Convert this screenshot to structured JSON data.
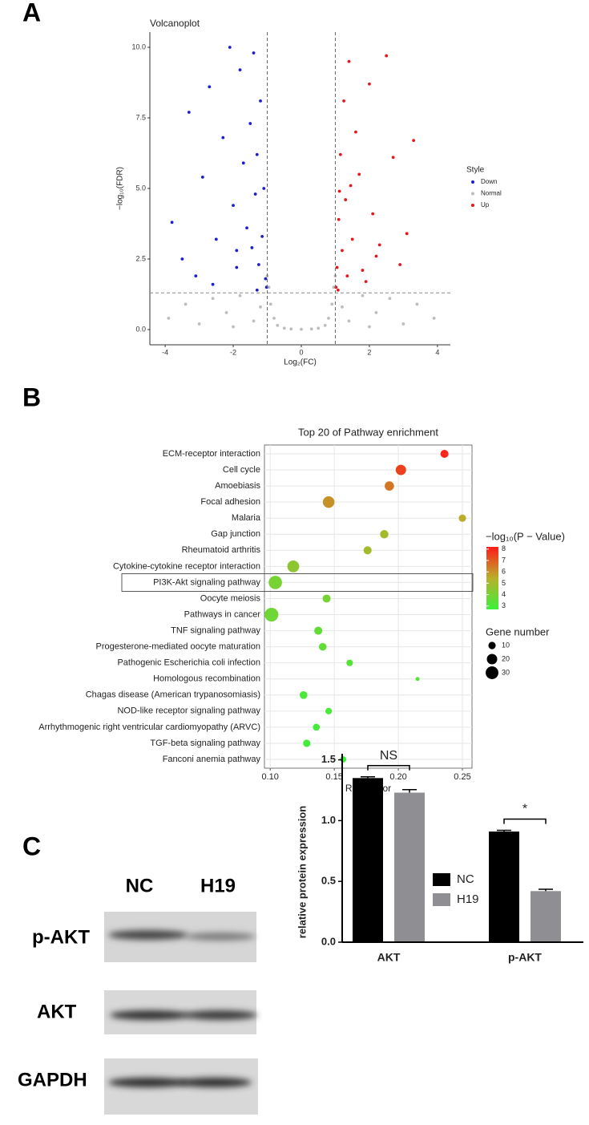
{
  "panels": [
    "A",
    "B",
    "C"
  ],
  "blot": {
    "lanes": [
      "NC",
      "H19"
    ],
    "rows": [
      "p-AKT",
      "AKT",
      "GAPDH"
    ]
  },
  "chart_data": [
    {
      "type": "scatter",
      "title": "Volcanoplot",
      "xlabel": "Log₂(FC)",
      "ylabel": "−log₁₀(FDR)",
      "legend_title": "Style",
      "xlim": [
        -4.45,
        4.38
      ],
      "ylim": [
        -0.54,
        10.54
      ],
      "xticks": [
        -4,
        -2,
        0,
        2,
        4
      ],
      "yticks": [
        {
          "value": 0,
          "label": "0.0"
        },
        {
          "value": 2.5,
          "label": "2.5"
        },
        {
          "value": 5,
          "label": "5.0"
        },
        {
          "value": 7.5,
          "label": "7.5"
        },
        {
          "value": 10,
          "label": "10.0"
        }
      ],
      "vlines": [
        -1,
        1
      ],
      "hline": 1.3,
      "series": [
        {
          "name": "Down",
          "color": "#1c1cd6",
          "x": [
            -3.8,
            -3.5,
            -3.3,
            -3.1,
            -2.9,
            -2.7,
            -2.5,
            -2.3,
            -2.1,
            -2.0,
            -1.9,
            -1.8,
            -1.7,
            -1.6,
            -1.5,
            -1.45,
            -1.4,
            -1.35,
            -1.3,
            -1.25,
            -1.2,
            -1.15,
            -1.1,
            -1.05,
            -1.02,
            -2.6,
            -1.9,
            -1.3
          ],
          "values": [
            3.8,
            2.5,
            7.7,
            1.9,
            5.4,
            8.6,
            3.2,
            6.8,
            10.0,
            4.4,
            2.2,
            9.2,
            5.9,
            3.6,
            7.3,
            2.9,
            9.8,
            4.8,
            6.2,
            2.3,
            8.1,
            3.3,
            5.0,
            1.8,
            1.5,
            1.6,
            2.8,
            1.4
          ]
        },
        {
          "name": "Normal",
          "color": "#bdbdbd",
          "x": [
            -3.9,
            -3.4,
            -3.0,
            -2.6,
            -2.2,
            -1.8,
            -1.4,
            -1.0,
            -0.9,
            -0.8,
            -0.7,
            -0.5,
            -0.3,
            0,
            0.3,
            0.5,
            0.7,
            0.8,
            0.9,
            1.0,
            1.4,
            1.8,
            2.2,
            2.6,
            3.0,
            3.4,
            3.9,
            -2.0,
            -1.2,
            1.2,
            2.0,
            -0.95,
            0.95
          ],
          "values": [
            0.4,
            0.9,
            0.2,
            1.1,
            0.6,
            1.2,
            0.3,
            1.9,
            0.9,
            0.4,
            0.15,
            0.05,
            0.02,
            0.01,
            0.02,
            0.05,
            0.15,
            0.4,
            0.9,
            1.9,
            0.3,
            1.2,
            0.6,
            1.1,
            0.2,
            0.9,
            0.4,
            0.1,
            0.8,
            0.8,
            0.1,
            1.5,
            1.5
          ]
        },
        {
          "name": "Up",
          "color": "#e8161a",
          "x": [
            1.02,
            1.05,
            1.1,
            1.15,
            1.2,
            1.25,
            1.3,
            1.4,
            1.5,
            1.6,
            1.7,
            1.8,
            2.0,
            2.1,
            2.3,
            2.5,
            2.7,
            2.9,
            3.1,
            3.3,
            1.35,
            1.45,
            1.9,
            2.2,
            1.08,
            1.12
          ],
          "values": [
            1.5,
            2.2,
            3.9,
            6.2,
            2.8,
            8.1,
            4.6,
            9.5,
            3.2,
            7.0,
            5.5,
            2.1,
            8.7,
            4.1,
            3.0,
            9.7,
            6.1,
            2.3,
            3.4,
            6.7,
            1.9,
            5.1,
            1.7,
            2.6,
            1.4,
            4.9
          ]
        }
      ]
    },
    {
      "type": "dotplot",
      "title": "Top 20 of Pathway enrichment",
      "xlabel": "Rich factor",
      "categories": [
        "ECM-receptor interaction",
        "Cell cycle",
        "Amoebiasis",
        "Focal adhesion",
        "Malaria",
        "Gap junction",
        "Rheumatoid arthritis",
        "Cytokine-cytokine receptor interaction",
        "PI3K-Akt signaling pathway",
        "Oocyte meiosis",
        "Pathways in cancer",
        "TNF signaling pathway",
        "Progesterone-mediated oocyte maturation",
        "Pathogenic Escherichia coli infection",
        "Homologous recombination",
        "Chagas disease (American trypanosomiasis)",
        "NOD-like receptor signaling pathway",
        "Arrhythmogenic right ventricular cardiomyopathy (ARVC)",
        "TGF-beta signaling pathway",
        "Fanconi anemia pathway"
      ],
      "values": [
        0.236,
        0.202,
        0.193,
        0.1456,
        0.25,
        0.189,
        0.176,
        0.118,
        0.104,
        0.144,
        0.101,
        0.1375,
        0.141,
        0.162,
        0.215,
        0.126,
        0.1456,
        0.136,
        0.1285,
        0.157
      ],
      "sizes": [
        12,
        20,
        16,
        25,
        10,
        13,
        12,
        26,
        33,
        12,
        35,
        12,
        11,
        8,
        3,
        11,
        8,
        9,
        10,
        7
      ],
      "color_values": [
        8,
        7.5,
        6.5,
        6,
        5.5,
        5,
        5,
        4.5,
        4,
        4,
        3.8,
        3.5,
        3.5,
        3.3,
        3.2,
        3,
        3,
        2.9,
        2.9,
        2.7
      ],
      "xlim": [
        0.0955,
        0.2575
      ],
      "xticks": [
        {
          "value": 0.1,
          "label": "0.10"
        },
        {
          "value": 0.15,
          "label": "0.15"
        },
        {
          "value": 0.2,
          "label": "0.20"
        },
        {
          "value": 0.25,
          "label": "0.25"
        }
      ],
      "grid": true,
      "highlight": 8,
      "color_title": "−log₁₀(P − Value)",
      "clim": [
        2.7,
        8.2
      ],
      "cticks": [
        3,
        4,
        5,
        6,
        7,
        8
      ],
      "colorscale": [
        "#3cf03c",
        "#b8b02a",
        "#ff1a1a"
      ],
      "size_title": "Gene number",
      "size_ticks": [
        10,
        20,
        30
      ]
    },
    {
      "type": "bar",
      "ylabel": "relative protein expression",
      "categories": [
        "AKT",
        "p-AKT"
      ],
      "series": [
        {
          "name": "NC",
          "color": "#000000",
          "values": [
            1.35,
            0.91
          ],
          "errors": [
            0.01,
            0.01
          ]
        },
        {
          "name": "H19",
          "color": "#8e8e93",
          "values": [
            1.23,
            0.42
          ],
          "errors": [
            0.025,
            0.015
          ]
        }
      ],
      "significance": [
        "NS",
        "*"
      ],
      "ylim": [
        0,
        1.55
      ],
      "yticks": [
        {
          "value": 0,
          "label": "0.0"
        },
        {
          "value": 0.5,
          "label": "0.5"
        },
        {
          "value": 1,
          "label": "1.0"
        },
        {
          "value": 1.5,
          "label": "1.5"
        }
      ]
    }
  ]
}
